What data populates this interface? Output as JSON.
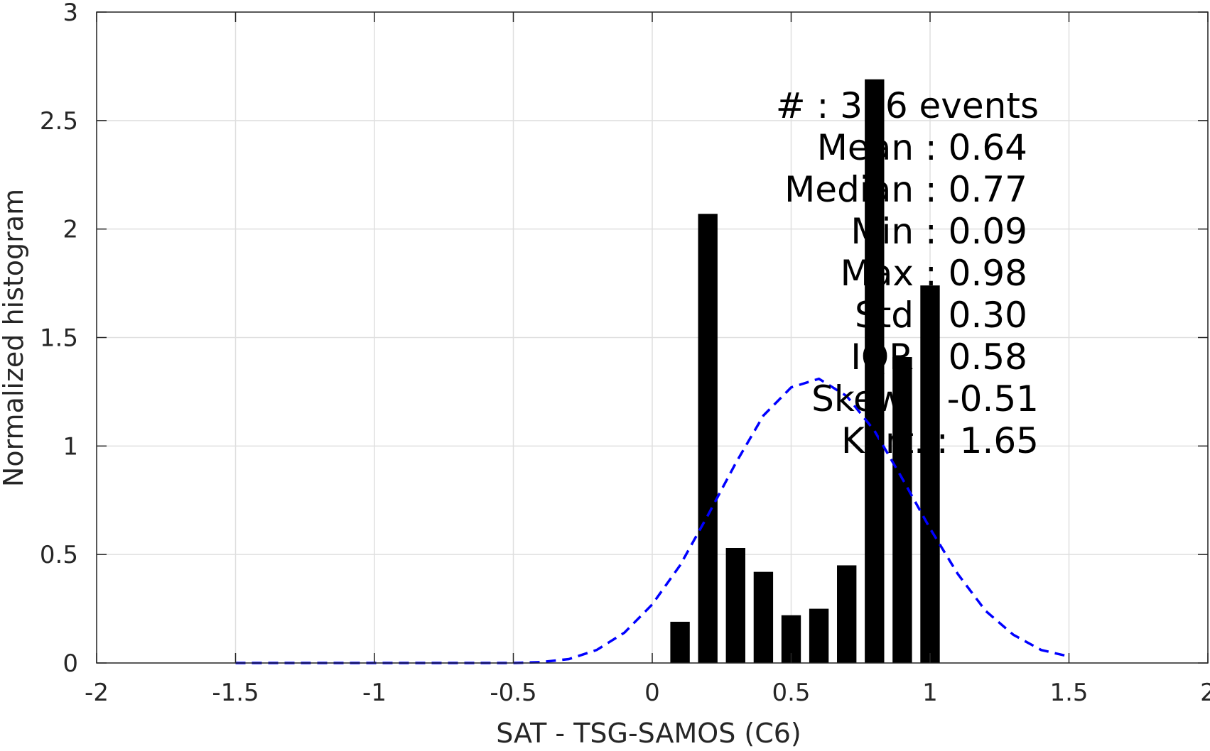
{
  "chart_data": {
    "type": "bar",
    "title": "",
    "xlabel": "SAT - TSG-SAMOS (C6)",
    "ylabel": "Normalized histogram",
    "xlim": [
      -2,
      2
    ],
    "ylim": [
      0,
      3
    ],
    "grid": true,
    "x_ticks": [
      -2,
      -1.5,
      -1,
      -0.5,
      0,
      0.5,
      1,
      1.5,
      2
    ],
    "x_tick_labels": [
      "-2",
      "-1.5",
      "-1",
      "-0.5",
      "0",
      "0.5",
      "1",
      "1.5",
      "2"
    ],
    "y_ticks": [
      0,
      0.5,
      1,
      1.5,
      2,
      2.5,
      3
    ],
    "y_tick_labels": [
      "0",
      "0.5",
      "1",
      "1.5",
      "2",
      "2.5",
      "3"
    ],
    "bar_color": "#000000",
    "bar_width": 0.07,
    "bars": {
      "x": [
        0.1,
        0.2,
        0.3,
        0.4,
        0.5,
        0.6,
        0.7,
        0.8,
        0.9,
        1.0
      ],
      "values": [
        0.19,
        2.07,
        0.53,
        0.42,
        0.22,
        0.25,
        0.45,
        2.69,
        1.41,
        1.74
      ]
    },
    "fit_curve": {
      "style": "dashed",
      "color": "#0000ff",
      "x": [
        -1.5,
        -1.4,
        -1.3,
        -1.2,
        -1.1,
        -1.0,
        -0.9,
        -0.8,
        -0.7,
        -0.6,
        -0.5,
        -0.4,
        -0.3,
        -0.2,
        -0.1,
        0.0,
        0.1,
        0.2,
        0.3,
        0.4,
        0.5,
        0.6,
        0.7,
        0.8,
        0.9,
        1.0,
        1.1,
        1.2,
        1.3,
        1.4,
        1.5
      ],
      "y": [
        0.0,
        0.0,
        0.0,
        0.0,
        0.0,
        0.0,
        0.0,
        0.0,
        0.0,
        0.0,
        0.0,
        0.004,
        0.018,
        0.06,
        0.14,
        0.27,
        0.45,
        0.68,
        0.92,
        1.14,
        1.27,
        1.31,
        1.23,
        1.07,
        0.85,
        0.62,
        0.41,
        0.24,
        0.13,
        0.06,
        0.03
      ]
    },
    "annotations": [
      "#  : 356 events",
      "Mean : 0.64",
      "Median : 0.77",
      "Min : 0.09",
      "Max : 0.98",
      "Std : 0.30",
      "IQR : 0.58",
      "Skew. : -0.51",
      "Kurt. : 1.65"
    ]
  }
}
